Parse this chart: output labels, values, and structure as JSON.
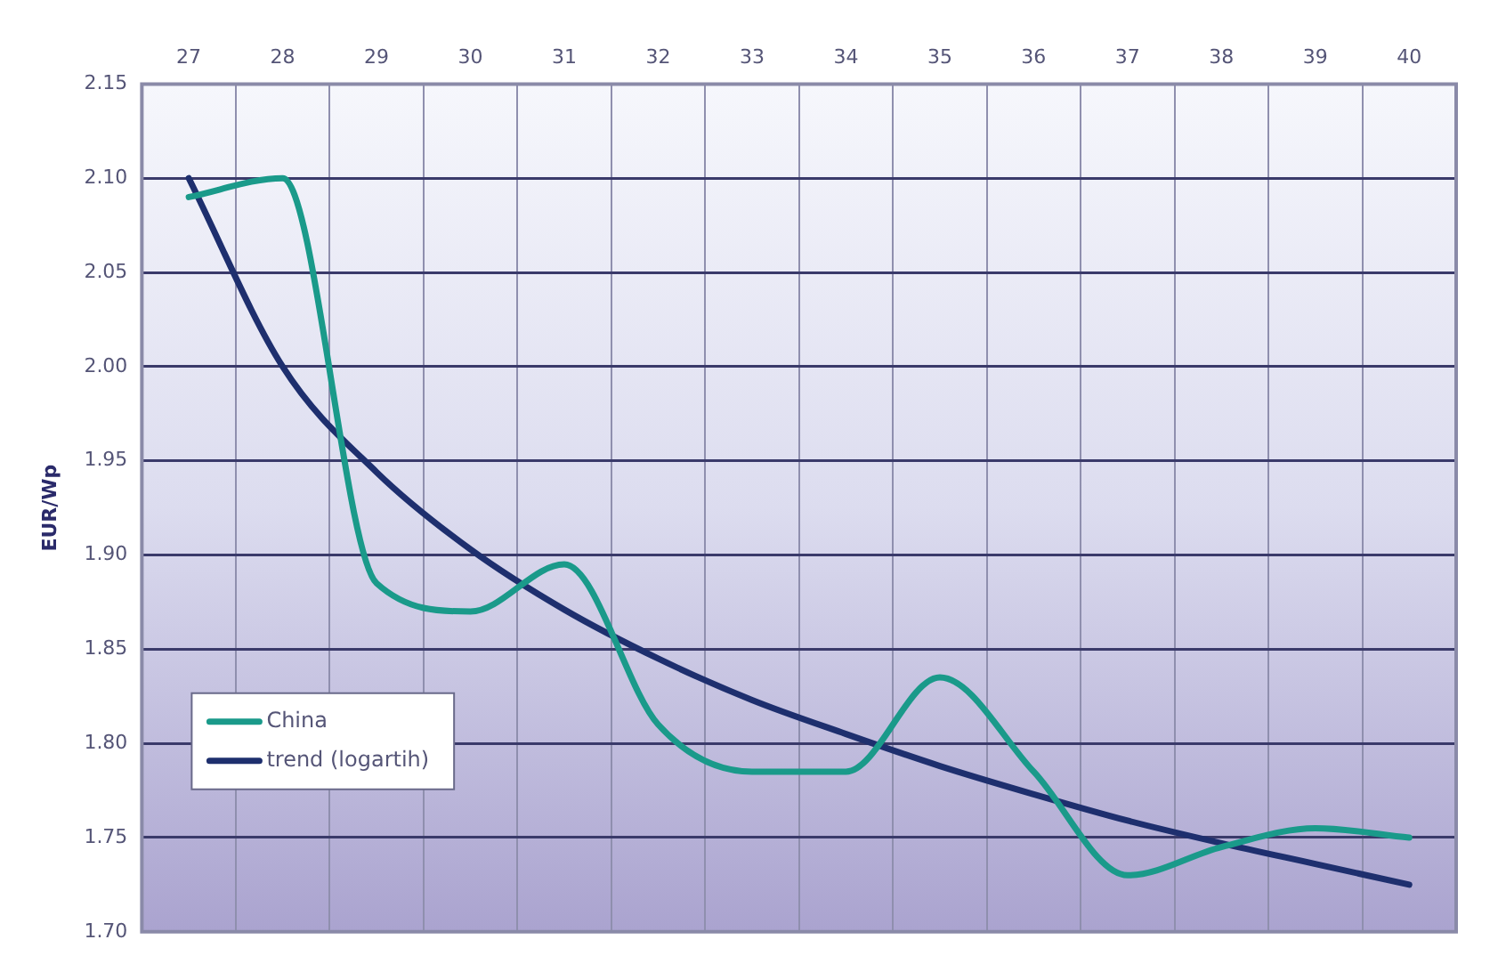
{
  "chart_data": {
    "type": "line",
    "ylabel": "EUR/Wp",
    "categories": [
      "27",
      "28",
      "29",
      "30",
      "31",
      "32",
      "33",
      "34",
      "35",
      "36",
      "37",
      "38",
      "39",
      "40"
    ],
    "series": [
      {
        "name": "China",
        "color": "#1a9a8a",
        "values": [
          2.09,
          2.1,
          1.885,
          1.87,
          1.895,
          1.81,
          1.785,
          1.785,
          1.835,
          1.785,
          1.73,
          1.745,
          1.755,
          1.75
        ]
      },
      {
        "name": "trend (logartih)",
        "color": "#1e2f6e",
        "values": [
          2.1,
          2.0,
          1.944,
          1.903,
          1.871,
          1.845,
          1.823,
          1.805,
          1.788,
          1.773,
          1.759,
          1.747,
          1.736,
          1.725
        ]
      }
    ],
    "ylim": [
      1.7,
      2.15
    ],
    "yticks": [
      {
        "value": 1.7,
        "label": "1.70"
      },
      {
        "value": 1.75,
        "label": "1.75"
      },
      {
        "value": 1.8,
        "label": "1.80"
      },
      {
        "value": 1.85,
        "label": "1.85"
      },
      {
        "value": 1.9,
        "label": "1.90"
      },
      {
        "value": 1.95,
        "label": "1.95"
      },
      {
        "value": 2.0,
        "label": "2.00"
      },
      {
        "value": 2.05,
        "label": "2.05"
      },
      {
        "value": 2.1,
        "label": "2.10"
      },
      {
        "value": 2.15,
        "label": "2.15"
      }
    ],
    "grid": true,
    "legend": "bottom left",
    "marker": "none",
    "line_style": "solid"
  }
}
